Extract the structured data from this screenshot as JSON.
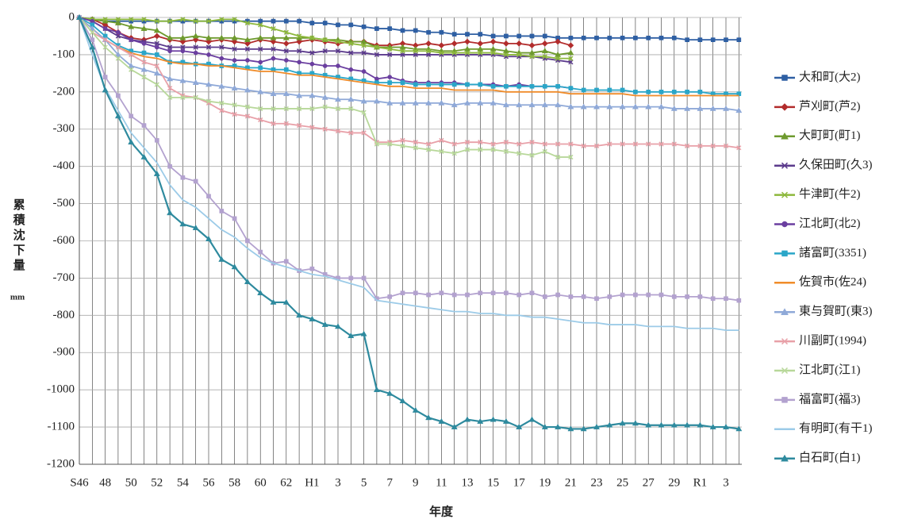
{
  "chart_data": {
    "type": "line",
    "x_label": "年度",
    "y_label": "累積沈下量",
    "y_unit": "mm",
    "categories": [
      "S46",
      null,
      "48",
      null,
      "50",
      null,
      "52",
      null,
      "54",
      null,
      "56",
      null,
      "58",
      null,
      "60",
      null,
      "62",
      null,
      "H1",
      null,
      "3",
      null,
      "5",
      null,
      "7",
      null,
      "9",
      null,
      "11",
      null,
      "13",
      null,
      "15",
      null,
      "17",
      null,
      "19",
      null,
      "21",
      null,
      "23",
      null,
      "25",
      null,
      "27",
      null,
      "29",
      null,
      "R1",
      null,
      "3",
      null
    ],
    "ylim": [
      -1200,
      0
    ],
    "yticks": [
      0,
      -100,
      -200,
      -300,
      -400,
      -500,
      -600,
      -700,
      -800,
      -900,
      -1000,
      -1100,
      -1200
    ],
    "grid": true,
    "series": [
      {
        "name": "大和町(大2)",
        "color": "#2e5fa3",
        "marker": "square",
        "values": [
          0,
          -5,
          -10,
          -10,
          -10,
          -10,
          -10,
          -10,
          -10,
          -10,
          -10,
          -10,
          -10,
          -10,
          -10,
          -10,
          -10,
          -10,
          -15,
          -15,
          -20,
          -20,
          -25,
          -30,
          -30,
          -35,
          -35,
          -40,
          -40,
          -45,
          -45,
          -45,
          -50,
          -50,
          -50,
          -50,
          -50,
          -55,
          -55,
          -55,
          -55,
          -55,
          -55,
          -55,
          -55,
          -55,
          -55,
          -60,
          -60,
          -60,
          -60,
          -60
        ]
      },
      {
        "name": "芦刈町(芦2)",
        "color": "#b22c2c",
        "marker": "diamond",
        "values": [
          0,
          -5,
          -20,
          -40,
          -55,
          -60,
          -50,
          -60,
          -65,
          -60,
          -65,
          -60,
          -65,
          -70,
          -60,
          -65,
          -70,
          -65,
          -60,
          -65,
          -70,
          -65,
          -65,
          -75,
          -75,
          -70,
          -75,
          -70,
          -75,
          -70,
          -65,
          -70,
          -65,
          -70,
          -70,
          -75,
          -70,
          -65,
          -75,
          null,
          null,
          null,
          null,
          null,
          null,
          null,
          null,
          null,
          null,
          null,
          null,
          null
        ]
      },
      {
        "name": "大町町(町1)",
        "color": "#6e9a2e",
        "marker": "triangle",
        "values": [
          0,
          -5,
          -10,
          -15,
          -25,
          -30,
          -35,
          -55,
          -55,
          -50,
          -55,
          -55,
          -55,
          -60,
          -55,
          -55,
          -55,
          -55,
          -55,
          -60,
          -60,
          -65,
          -65,
          -80,
          -80,
          -80,
          -85,
          -85,
          -90,
          -90,
          -85,
          -85,
          -85,
          -90,
          -95,
          -95,
          -90,
          -100,
          -95,
          null,
          null,
          null,
          null,
          null,
          null,
          null,
          null,
          null,
          null,
          null,
          null,
          null
        ]
      },
      {
        "name": "久保田町(久3)",
        "color": "#5b3a8c",
        "marker": "cross",
        "values": [
          0,
          -10,
          -30,
          -50,
          -60,
          -65,
          -70,
          -80,
          -80,
          -80,
          -80,
          -80,
          -85,
          -85,
          -85,
          -85,
          -90,
          -90,
          -95,
          -90,
          -90,
          -95,
          -95,
          -100,
          -100,
          -100,
          -100,
          -100,
          -100,
          -100,
          -100,
          -100,
          -100,
          -105,
          -105,
          -105,
          -110,
          -115,
          -120,
          null,
          null,
          null,
          null,
          null,
          null,
          null,
          null,
          null,
          null,
          null,
          null,
          null
        ]
      },
      {
        "name": "牛津町(牛2)",
        "color": "#8db83c",
        "marker": "cross",
        "values": [
          0,
          -5,
          -5,
          -5,
          -5,
          -5,
          -10,
          -10,
          -5,
          -10,
          -10,
          -5,
          -5,
          -15,
          -20,
          -30,
          -40,
          -50,
          -55,
          -60,
          -65,
          -70,
          -75,
          -80,
          -85,
          -90,
          -90,
          -90,
          -95,
          -95,
          -95,
          -95,
          -95,
          -100,
          -100,
          -105,
          -105,
          -110,
          -110,
          null,
          null,
          null,
          null,
          null,
          null,
          null,
          null,
          null,
          null,
          null,
          null,
          null
        ]
      },
      {
        "name": "江北町(北2)",
        "color": "#6b3fa0",
        "marker": "circle",
        "values": [
          0,
          -10,
          -30,
          -40,
          -60,
          -70,
          -80,
          -90,
          -90,
          -95,
          -100,
          -110,
          -115,
          -115,
          -120,
          -110,
          -115,
          -120,
          -125,
          -130,
          -130,
          -140,
          -145,
          -165,
          -160,
          -170,
          -175,
          -175,
          -175,
          -175,
          -180,
          -180,
          -180,
          -185,
          -180,
          -185,
          -185,
          -185,
          -190,
          null,
          null,
          null,
          null,
          null,
          null,
          null,
          null,
          null,
          null,
          null,
          null,
          null
        ]
      },
      {
        "name": "諸富町(3351)",
        "color": "#2aa6c8",
        "marker": "square",
        "values": [
          0,
          -20,
          -50,
          -75,
          -90,
          -95,
          -100,
          -120,
          -120,
          -125,
          -125,
          -130,
          -130,
          -135,
          -135,
          -140,
          -140,
          -150,
          -150,
          -155,
          -160,
          -165,
          -170,
          -175,
          -175,
          -175,
          -180,
          -180,
          -180,
          -180,
          -180,
          -180,
          -185,
          -185,
          -185,
          -185,
          -185,
          -185,
          -190,
          -195,
          -195,
          -195,
          -195,
          -200,
          -200,
          -200,
          -200,
          -200,
          -200,
          -205,
          -205,
          -205
        ]
      },
      {
        "name": "佐賀市(佐24)",
        "color": "#f08c2a",
        "marker": "none",
        "values": [
          0,
          -30,
          -60,
          -80,
          -95,
          -105,
          -110,
          -120,
          -125,
          -125,
          -130,
          -130,
          -135,
          -140,
          -145,
          -145,
          -150,
          -155,
          -155,
          -160,
          -165,
          -170,
          -175,
          -180,
          -185,
          -185,
          -190,
          -190,
          -190,
          -195,
          -195,
          -195,
          -195,
          -200,
          -200,
          -200,
          -200,
          -200,
          -205,
          -205,
          -205,
          -205,
          -205,
          -210,
          -210,
          -210,
          -210,
          -210,
          -210,
          -210,
          -210,
          -210
        ]
      },
      {
        "name": "東与賀町(東3)",
        "color": "#8fa9d8",
        "marker": "triangle",
        "values": [
          0,
          -30,
          -60,
          -100,
          -130,
          -140,
          -150,
          -165,
          -170,
          -175,
          -180,
          -185,
          -190,
          -195,
          -200,
          -205,
          -205,
          -210,
          -210,
          -215,
          -220,
          -220,
          -225,
          -225,
          -230,
          -230,
          -230,
          -230,
          -230,
          -235,
          -230,
          -230,
          -230,
          -235,
          -235,
          -235,
          -235,
          -235,
          -240,
          -240,
          -240,
          -240,
          -240,
          -240,
          -240,
          -240,
          -245,
          -245,
          -245,
          -245,
          -245,
          -250
        ]
      },
      {
        "name": "川副町(1994)",
        "color": "#e8a0a8",
        "marker": "cross",
        "values": [
          0,
          -40,
          -60,
          -80,
          -100,
          -120,
          -130,
          -190,
          -210,
          -215,
          -230,
          -250,
          -260,
          -265,
          -275,
          -285,
          -285,
          -290,
          -295,
          -300,
          -305,
          -310,
          -310,
          -335,
          -335,
          -330,
          -335,
          -340,
          -330,
          -340,
          -335,
          -335,
          -340,
          -335,
          -340,
          -335,
          -340,
          -340,
          -340,
          -345,
          -345,
          -340,
          -340,
          -340,
          -340,
          -340,
          -340,
          -345,
          -345,
          -345,
          -345,
          -350
        ]
      },
      {
        "name": "江北町(江1)",
        "color": "#b8d89a",
        "marker": "cross",
        "values": [
          0,
          -40,
          -80,
          -110,
          -140,
          -160,
          -180,
          -215,
          -215,
          -215,
          -225,
          -230,
          -235,
          -240,
          -245,
          -245,
          -245,
          -245,
          -245,
          -240,
          -245,
          -245,
          -255,
          -340,
          -340,
          -345,
          -350,
          -355,
          -360,
          -365,
          -355,
          -355,
          -355,
          -360,
          -365,
          -370,
          -360,
          -375,
          -375,
          null,
          null,
          null,
          null,
          null,
          null,
          null,
          null,
          null,
          null,
          null,
          null,
          null
        ]
      },
      {
        "name": "福富町(福3)",
        "color": "#b3a2cf",
        "marker": "square",
        "values": [
          0,
          -60,
          -160,
          -210,
          -265,
          -290,
          -330,
          -400,
          -430,
          -440,
          -480,
          -520,
          -540,
          -600,
          -630,
          -660,
          -655,
          -680,
          -675,
          -690,
          -700,
          -700,
          -700,
          -755,
          -750,
          -740,
          -740,
          -745,
          -740,
          -745,
          -745,
          -740,
          -740,
          -740,
          -745,
          -740,
          -750,
          -745,
          -750,
          -750,
          -755,
          -750,
          -745,
          -745,
          -745,
          -745,
          -750,
          -750,
          -750,
          -755,
          -755,
          -760
        ]
      },
      {
        "name": "有明町(有干1)",
        "color": "#9ccbe8",
        "marker": "none",
        "values": [
          0,
          -100,
          -190,
          -250,
          -310,
          -350,
          -390,
          -450,
          -490,
          -510,
          -540,
          -570,
          -590,
          -620,
          -645,
          -660,
          -670,
          -680,
          -690,
          -695,
          -705,
          -715,
          -725,
          -760,
          -765,
          -770,
          -775,
          -780,
          -785,
          -790,
          -790,
          -795,
          -795,
          -800,
          -800,
          -805,
          -805,
          -810,
          -815,
          -820,
          -820,
          -825,
          -825,
          -825,
          -830,
          -830,
          -830,
          -835,
          -835,
          -835,
          -840,
          -840
        ]
      },
      {
        "name": "白石町(白1)",
        "color": "#2e8a9e",
        "marker": "triangle",
        "values": [
          0,
          -80,
          -195,
          -265,
          -335,
          -375,
          -420,
          -525,
          -555,
          -565,
          -595,
          -650,
          -670,
          -710,
          -740,
          -765,
          -765,
          -800,
          -810,
          -825,
          -830,
          -855,
          -850,
          -1000,
          -1010,
          -1030,
          -1055,
          -1075,
          -1085,
          -1100,
          -1080,
          -1085,
          -1080,
          -1085,
          -1100,
          -1080,
          -1100,
          -1100,
          -1105,
          -1105,
          -1100,
          -1095,
          -1090,
          -1090,
          -1095,
          -1095,
          -1095,
          -1095,
          -1095,
          -1100,
          -1100,
          -1105
        ]
      }
    ]
  }
}
